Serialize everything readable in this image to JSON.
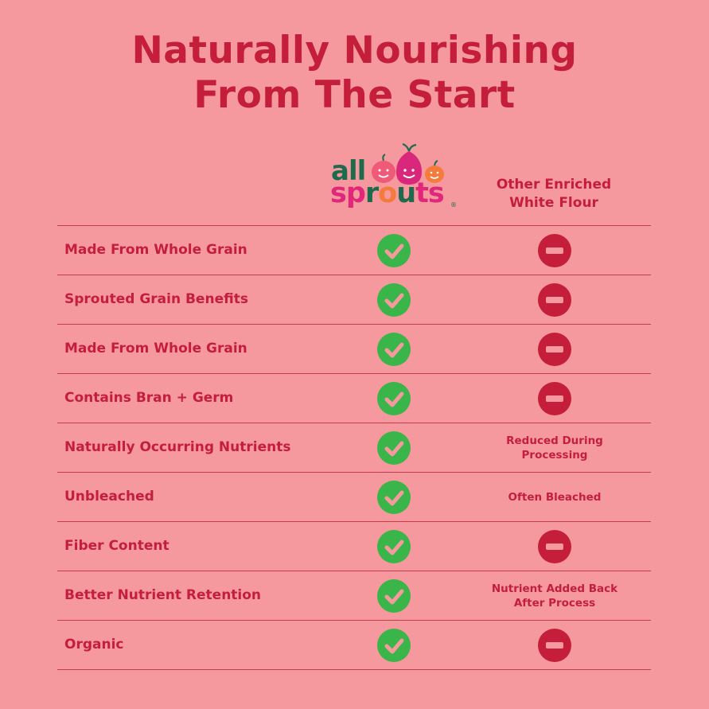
{
  "title": {
    "line1": "Naturally Nourishing",
    "line2": "From The Start"
  },
  "logo": {
    "word1": "all",
    "word2": "sprouts",
    "registered_mark": "®",
    "colors": {
      "green": "#1d6b4c",
      "pink": "#e0277a",
      "orange": "#f47b3c"
    }
  },
  "columns": {
    "brand": "all sprouts",
    "competitor": "Other Enriched White Flour"
  },
  "colors": {
    "background": "#f5999f",
    "text": "#c41e3a",
    "check": "#3ab54a",
    "minus": "#c41e3a"
  },
  "rows": [
    {
      "label": "Made From Whole Grain",
      "brand": "check-icon",
      "competitor": "minus-icon",
      "competitor_text": ""
    },
    {
      "label": "Sprouted Grain Benefits",
      "brand": "check-icon",
      "competitor": "minus-icon",
      "competitor_text": ""
    },
    {
      "label": "Made From Whole Grain",
      "brand": "check-icon",
      "competitor": "minus-icon",
      "competitor_text": ""
    },
    {
      "label": "Contains Bran + Germ",
      "brand": "check-icon",
      "competitor": "minus-icon",
      "competitor_text": ""
    },
    {
      "label": "Naturally Occurring Nutrients",
      "brand": "check-icon",
      "competitor": "text",
      "competitor_text": "Reduced During Processing"
    },
    {
      "label": "Unbleached",
      "brand": "check-icon",
      "competitor": "text",
      "competitor_text": "Often Bleached"
    },
    {
      "label": "Fiber Content",
      "brand": "check-icon",
      "competitor": "minus-icon",
      "competitor_text": ""
    },
    {
      "label": "Better Nutrient Retention",
      "brand": "check-icon",
      "competitor": "text",
      "competitor_text": "Nutrient Added Back\nAfter Process"
    },
    {
      "label": "Organic",
      "brand": "check-icon",
      "competitor": "minus-icon",
      "competitor_text": ""
    }
  ]
}
